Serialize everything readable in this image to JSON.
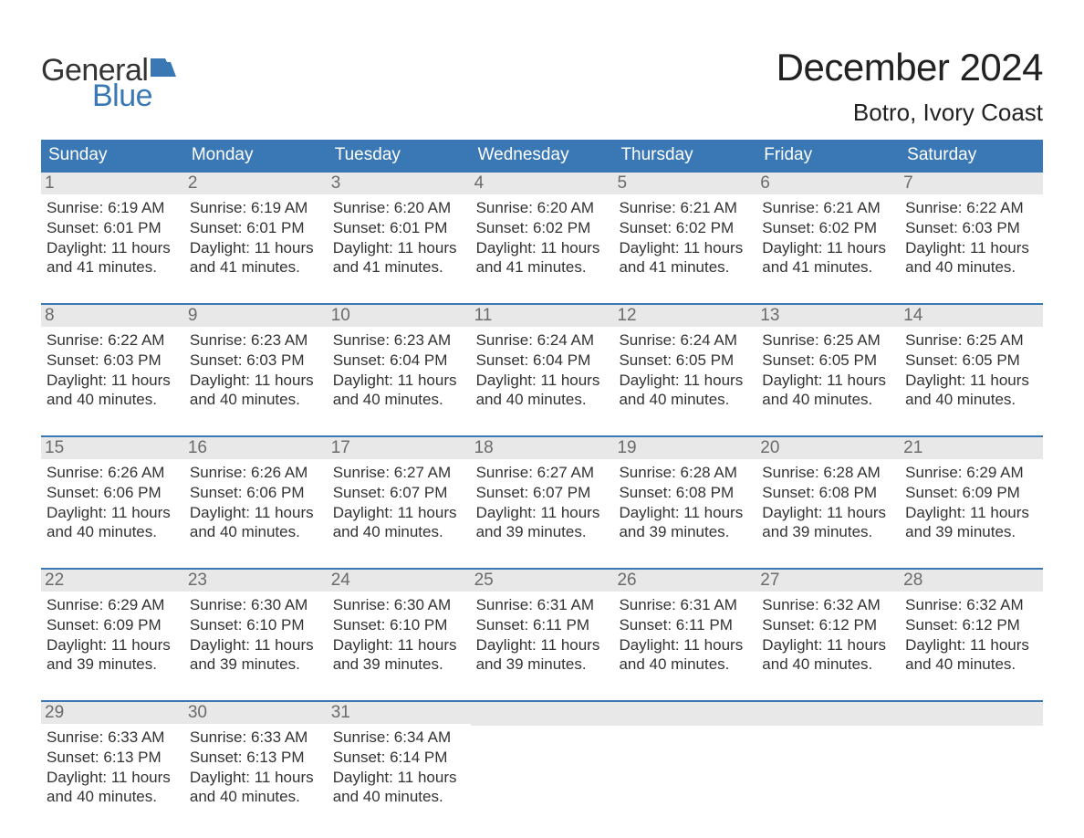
{
  "logo": {
    "word1": "General",
    "word2": "Blue",
    "flag_color": "#3a78b5"
  },
  "title": "December 2024",
  "location": "Botro, Ivory Coast",
  "colors": {
    "header_bg": "#3a78b5",
    "header_text": "#ffffff",
    "daynum_bg": "#e8e8e8",
    "daynum_text": "#6b6b6b",
    "body_text": "#333333",
    "week_border": "#3a78b5",
    "page_bg": "#ffffff"
  },
  "day_names": [
    "Sunday",
    "Monday",
    "Tuesday",
    "Wednesday",
    "Thursday",
    "Friday",
    "Saturday"
  ],
  "labels": {
    "sunrise": "Sunrise:",
    "sunset": "Sunset:",
    "daylight": "Daylight:"
  },
  "weeks": [
    [
      {
        "n": "1",
        "sunrise": "6:19 AM",
        "sunset": "6:01 PM",
        "daylight": "11 hours and 41 minutes."
      },
      {
        "n": "2",
        "sunrise": "6:19 AM",
        "sunset": "6:01 PM",
        "daylight": "11 hours and 41 minutes."
      },
      {
        "n": "3",
        "sunrise": "6:20 AM",
        "sunset": "6:01 PM",
        "daylight": "11 hours and 41 minutes."
      },
      {
        "n": "4",
        "sunrise": "6:20 AM",
        "sunset": "6:02 PM",
        "daylight": "11 hours and 41 minutes."
      },
      {
        "n": "5",
        "sunrise": "6:21 AM",
        "sunset": "6:02 PM",
        "daylight": "11 hours and 41 minutes."
      },
      {
        "n": "6",
        "sunrise": "6:21 AM",
        "sunset": "6:02 PM",
        "daylight": "11 hours and 41 minutes."
      },
      {
        "n": "7",
        "sunrise": "6:22 AM",
        "sunset": "6:03 PM",
        "daylight": "11 hours and 40 minutes."
      }
    ],
    [
      {
        "n": "8",
        "sunrise": "6:22 AM",
        "sunset": "6:03 PM",
        "daylight": "11 hours and 40 minutes."
      },
      {
        "n": "9",
        "sunrise": "6:23 AM",
        "sunset": "6:03 PM",
        "daylight": "11 hours and 40 minutes."
      },
      {
        "n": "10",
        "sunrise": "6:23 AM",
        "sunset": "6:04 PM",
        "daylight": "11 hours and 40 minutes."
      },
      {
        "n": "11",
        "sunrise": "6:24 AM",
        "sunset": "6:04 PM",
        "daylight": "11 hours and 40 minutes."
      },
      {
        "n": "12",
        "sunrise": "6:24 AM",
        "sunset": "6:05 PM",
        "daylight": "11 hours and 40 minutes."
      },
      {
        "n": "13",
        "sunrise": "6:25 AM",
        "sunset": "6:05 PM",
        "daylight": "11 hours and 40 minutes."
      },
      {
        "n": "14",
        "sunrise": "6:25 AM",
        "sunset": "6:05 PM",
        "daylight": "11 hours and 40 minutes."
      }
    ],
    [
      {
        "n": "15",
        "sunrise": "6:26 AM",
        "sunset": "6:06 PM",
        "daylight": "11 hours and 40 minutes."
      },
      {
        "n": "16",
        "sunrise": "6:26 AM",
        "sunset": "6:06 PM",
        "daylight": "11 hours and 40 minutes."
      },
      {
        "n": "17",
        "sunrise": "6:27 AM",
        "sunset": "6:07 PM",
        "daylight": "11 hours and 40 minutes."
      },
      {
        "n": "18",
        "sunrise": "6:27 AM",
        "sunset": "6:07 PM",
        "daylight": "11 hours and 39 minutes."
      },
      {
        "n": "19",
        "sunrise": "6:28 AM",
        "sunset": "6:08 PM",
        "daylight": "11 hours and 39 minutes."
      },
      {
        "n": "20",
        "sunrise": "6:28 AM",
        "sunset": "6:08 PM",
        "daylight": "11 hours and 39 minutes."
      },
      {
        "n": "21",
        "sunrise": "6:29 AM",
        "sunset": "6:09 PM",
        "daylight": "11 hours and 39 minutes."
      }
    ],
    [
      {
        "n": "22",
        "sunrise": "6:29 AM",
        "sunset": "6:09 PM",
        "daylight": "11 hours and 39 minutes."
      },
      {
        "n": "23",
        "sunrise": "6:30 AM",
        "sunset": "6:10 PM",
        "daylight": "11 hours and 39 minutes."
      },
      {
        "n": "24",
        "sunrise": "6:30 AM",
        "sunset": "6:10 PM",
        "daylight": "11 hours and 39 minutes."
      },
      {
        "n": "25",
        "sunrise": "6:31 AM",
        "sunset": "6:11 PM",
        "daylight": "11 hours and 39 minutes."
      },
      {
        "n": "26",
        "sunrise": "6:31 AM",
        "sunset": "6:11 PM",
        "daylight": "11 hours and 40 minutes."
      },
      {
        "n": "27",
        "sunrise": "6:32 AM",
        "sunset": "6:12 PM",
        "daylight": "11 hours and 40 minutes."
      },
      {
        "n": "28",
        "sunrise": "6:32 AM",
        "sunset": "6:12 PM",
        "daylight": "11 hours and 40 minutes."
      }
    ],
    [
      {
        "n": "29",
        "sunrise": "6:33 AM",
        "sunset": "6:13 PM",
        "daylight": "11 hours and 40 minutes."
      },
      {
        "n": "30",
        "sunrise": "6:33 AM",
        "sunset": "6:13 PM",
        "daylight": "11 hours and 40 minutes."
      },
      {
        "n": "31",
        "sunrise": "6:34 AM",
        "sunset": "6:14 PM",
        "daylight": "11 hours and 40 minutes."
      },
      null,
      null,
      null,
      null
    ]
  ]
}
